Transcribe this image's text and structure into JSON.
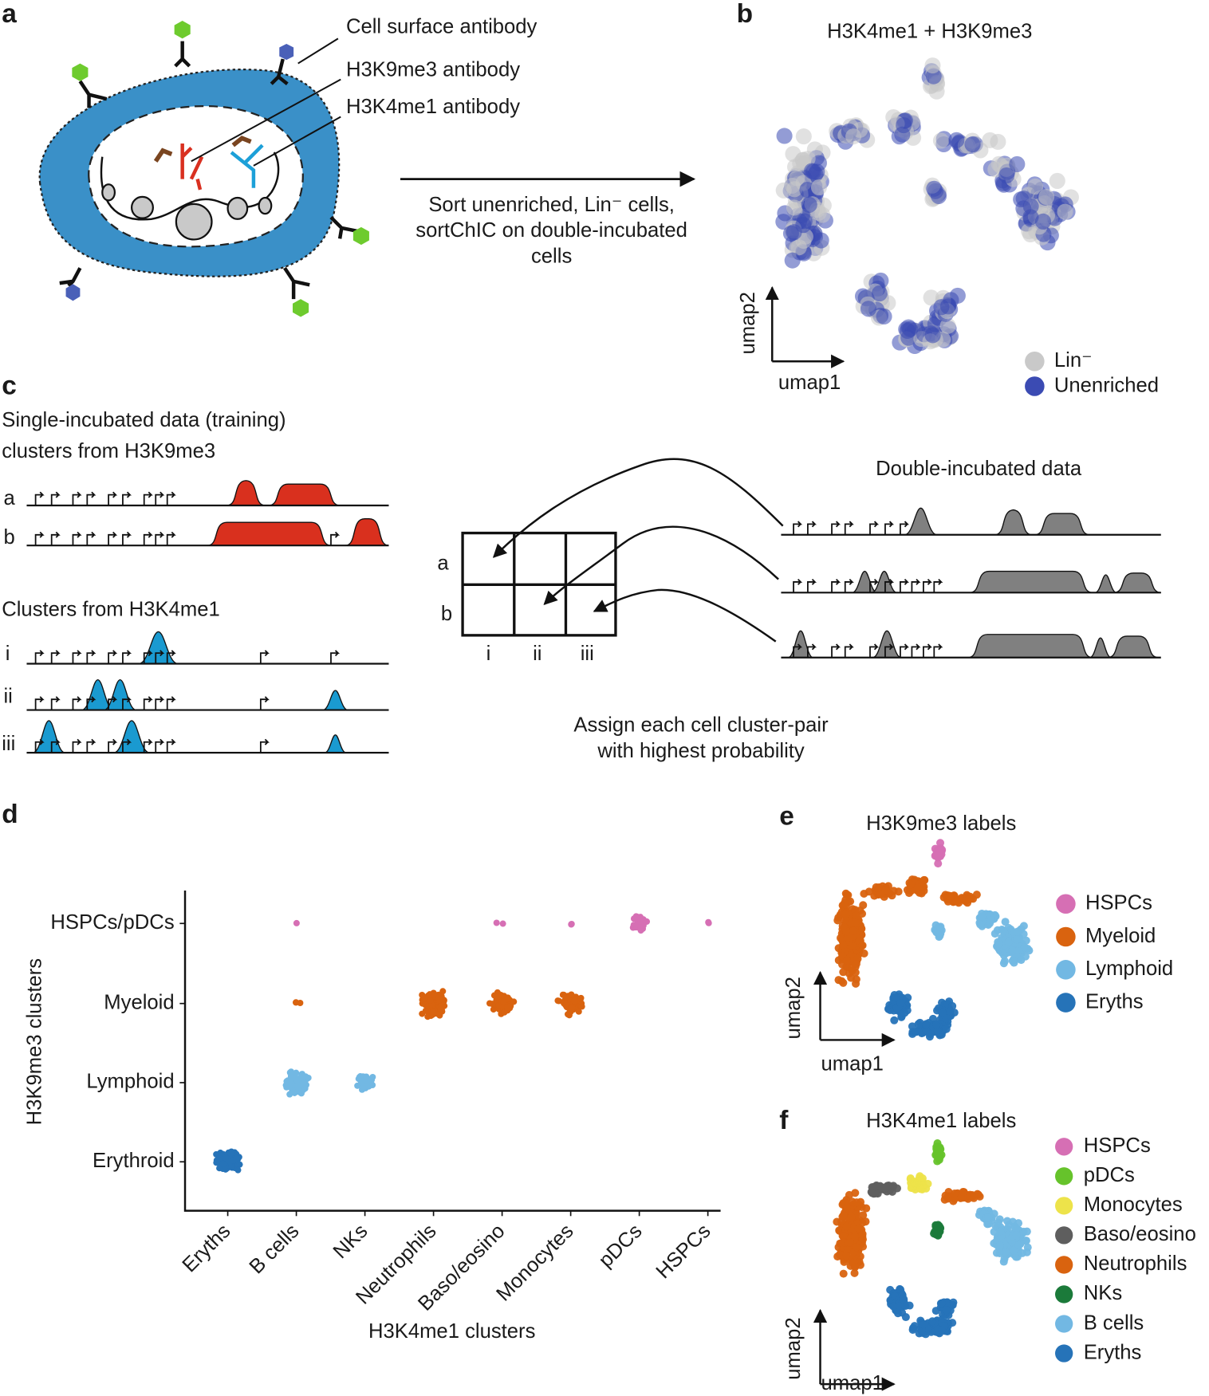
{
  "panels": {
    "a": {
      "label": "a",
      "annotations": [
        "Cell surface antibody",
        "H3K9me3 antibody",
        "H3K4me1 antibody"
      ],
      "arrow_text": [
        "Sort unenriched, Lin⁻ cells,",
        "sortChIC on double-incubated",
        "cells"
      ]
    },
    "b": {
      "label": "b",
      "title": "H3K4me1 + H3K9me3",
      "x_label": "umap1",
      "y_label": "umap2",
      "legend": [
        {
          "name": "Lin⁻",
          "color": "#c9c9c9"
        },
        {
          "name": "Unenriched",
          "color": "#3b4bb3"
        }
      ]
    },
    "c": {
      "label": "c",
      "training_title": [
        "Single-incubated data (training)",
        "clusters from H3K9me3"
      ],
      "h3k9me3_rows": [
        "a",
        "b"
      ],
      "h3k4me1_title": "Clusters from H3K4me1",
      "h3k4me1_rows": [
        "i",
        "ii",
        "iii"
      ],
      "double_title": "Double-incubated data",
      "grid_rows": [
        "a",
        "b"
      ],
      "grid_cols": [
        "i",
        "ii",
        "iii"
      ],
      "caption": [
        "Assign each cell cluster-pair",
        "with highest probability"
      ]
    },
    "d": {
      "label": "d",
      "y_label": "H3K9me3 clusters",
      "x_label": "H3K4me1 clusters",
      "y_categories": [
        "HSPCs/pDCs",
        "Myeloid",
        "Lymphoid",
        "Erythroid"
      ],
      "y_colors": [
        "#d66fb4",
        "#d9630f",
        "#72b8e3",
        "#2673b8"
      ],
      "x_categories": [
        "Eryths",
        "B cells",
        "NKs",
        "Neutrophils",
        "Baso/eosino",
        "Monocytes",
        "pDCs",
        "HSPCs"
      ]
    },
    "e": {
      "label": "e",
      "title": "H3K9me3 labels",
      "x_label": "umap1",
      "y_label": "umap2",
      "legend": [
        {
          "name": "HSPCs",
          "color": "#d66fb4"
        },
        {
          "name": "Myeloid",
          "color": "#d9630f"
        },
        {
          "name": "Lymphoid",
          "color": "#72b8e3"
        },
        {
          "name": "Eryths",
          "color": "#2673b8"
        }
      ]
    },
    "f": {
      "label": "f",
      "title": "H3K4me1 labels",
      "x_label": "umap1",
      "y_label": "umap2",
      "legend": [
        {
          "name": "HSPCs",
          "color": "#d66fb4"
        },
        {
          "name": "pDCs",
          "color": "#66c32b"
        },
        {
          "name": "Monocytes",
          "color": "#ede34a"
        },
        {
          "name": "Baso/eosino",
          "color": "#5e5e5e"
        },
        {
          "name": "Neutrophils",
          "color": "#d9630f"
        },
        {
          "name": "NKs",
          "color": "#1b7a3a"
        },
        {
          "name": "B cells",
          "color": "#72b8e3"
        },
        {
          "name": "Eryths",
          "color": "#2673b8"
        }
      ]
    }
  }
}
